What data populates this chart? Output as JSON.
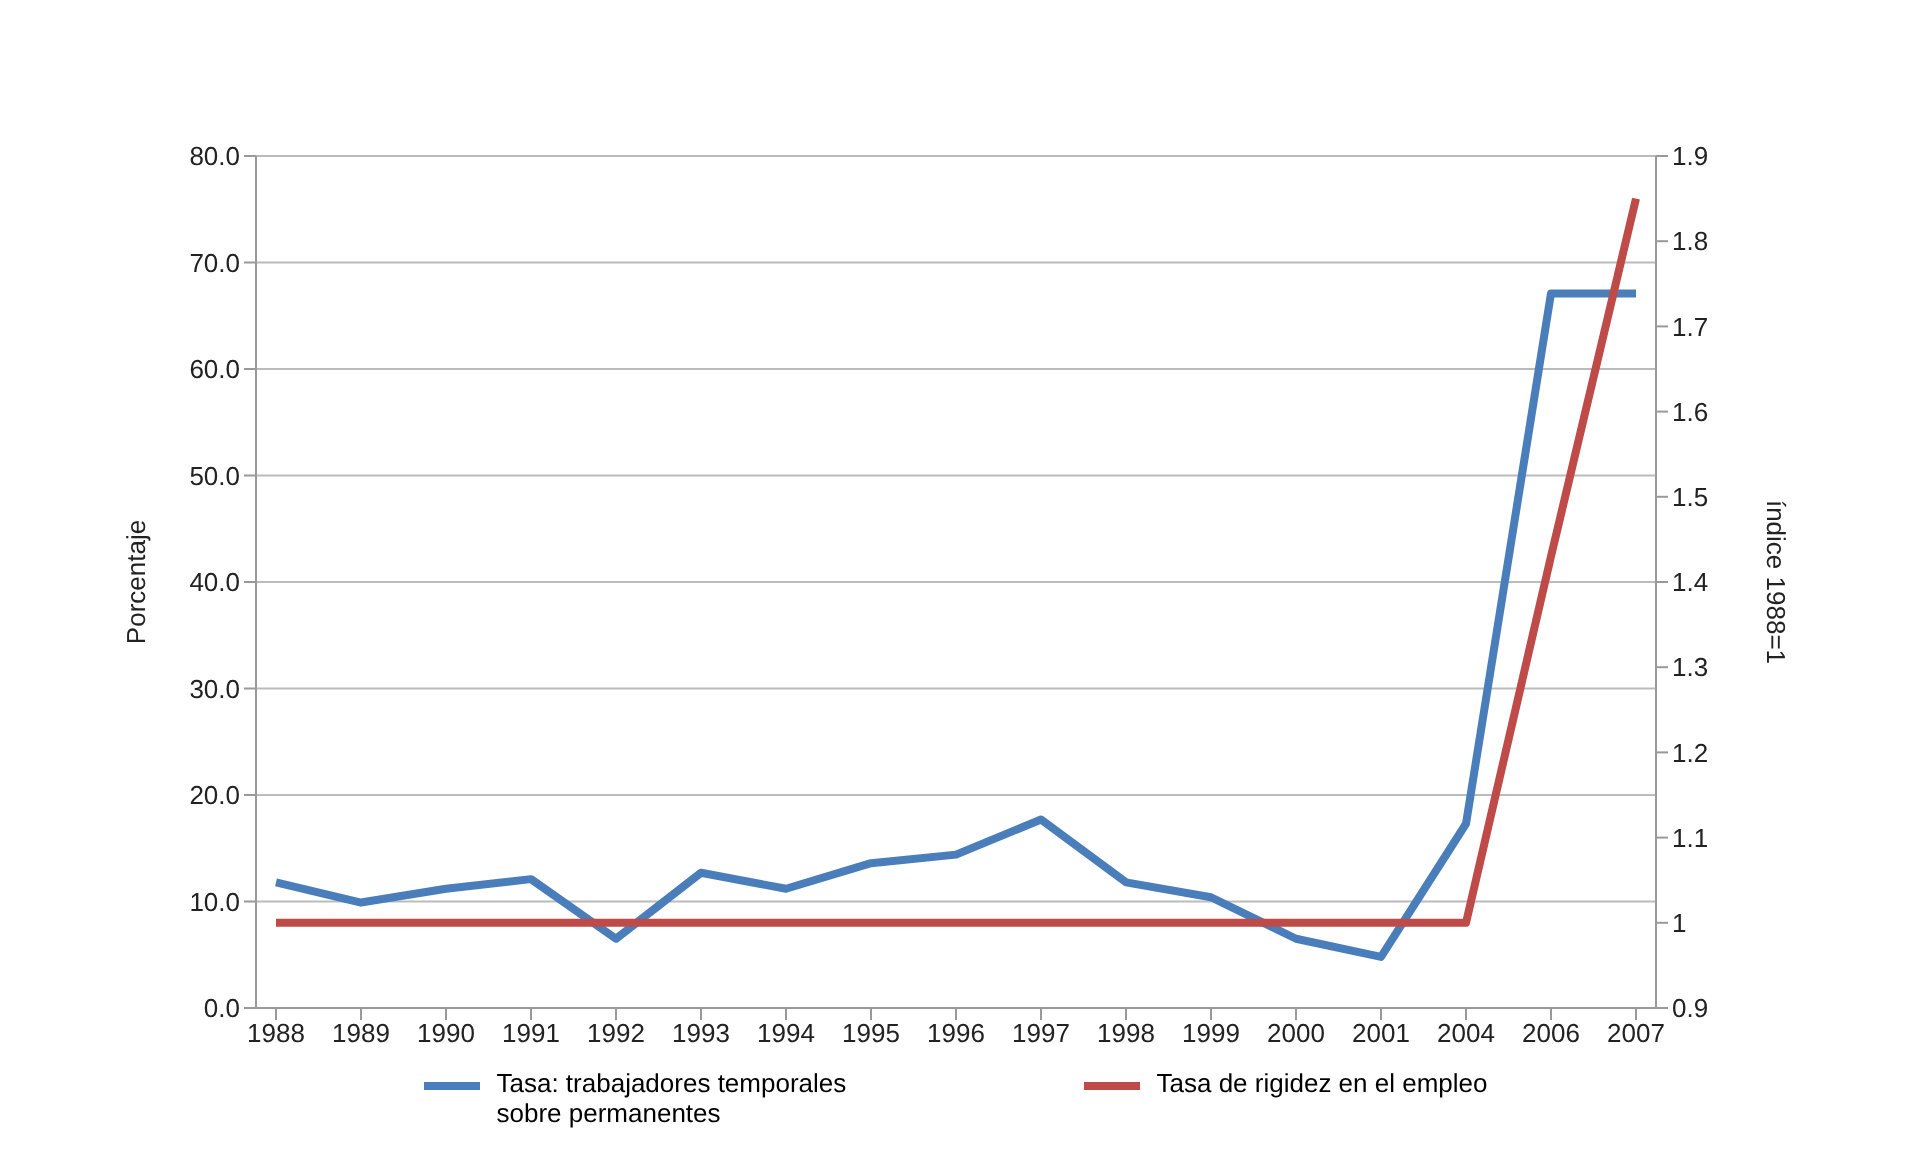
{
  "chart_data": {
    "type": "line",
    "categories": [
      "1988",
      "1989",
      "1990",
      "1991",
      "1992",
      "1993",
      "1994",
      "1995",
      "1996",
      "1997",
      "1998",
      "1999",
      "2000",
      "2001",
      "2004",
      "2006",
      "2007"
    ],
    "series": [
      {
        "name": "Tasa: trabajadores temporales sobre permanentes",
        "color": "#4a7ebb",
        "values": [
          11.8,
          9.9,
          11.2,
          12.1,
          6.5,
          12.7,
          11.2,
          13.6,
          14.4,
          17.7,
          11.8,
          10.4,
          6.5,
          4.8,
          17.3,
          67.1,
          67.1
        ]
      },
      {
        "name": "Tasa de rigidez en el empleo",
        "color": "#be4b48",
        "axis": "y2",
        "values": [
          1,
          1,
          1,
          1,
          1,
          1,
          1,
          1,
          1,
          1,
          1,
          1,
          1,
          1,
          1,
          1.43,
          1.85
        ]
      }
    ],
    "ylabel": "Porcentaje",
    "y2label": "índice  1988=1",
    "ylim": [
      0,
      80
    ],
    "yticks": [
      {
        "value": 0,
        "label": "0.0"
      },
      {
        "value": 10,
        "label": "10.0"
      },
      {
        "value": 20,
        "label": "20.0"
      },
      {
        "value": 30,
        "label": "30.0"
      },
      {
        "value": 40,
        "label": "40.0"
      },
      {
        "value": 50,
        "label": "50.0"
      },
      {
        "value": 60,
        "label": "60.0"
      },
      {
        "value": 70,
        "label": "70.0"
      },
      {
        "value": 80,
        "label": "80.0"
      }
    ],
    "y2lim": [
      0.9,
      1.9
    ],
    "y2ticks": [
      0.9,
      1,
      1.1,
      1.2,
      1.3,
      1.4,
      1.5,
      1.6,
      1.7,
      1.8,
      1.9
    ],
    "grid": "y",
    "legend": "bottom",
    "marker": "none",
    "line_style": "solid"
  }
}
